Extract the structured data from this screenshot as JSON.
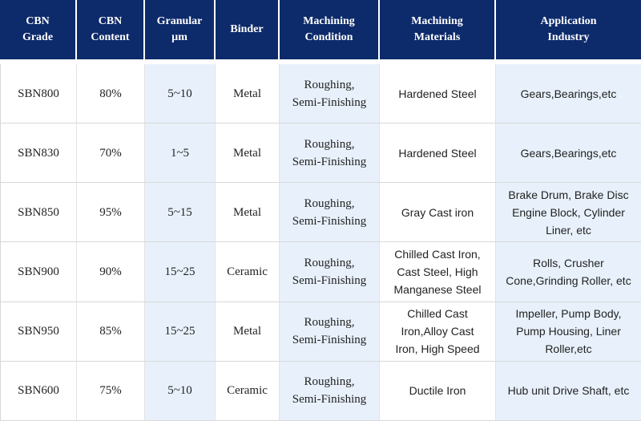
{
  "headers": [
    [
      "CBN",
      "Grade"
    ],
    [
      "CBN",
      "Content"
    ],
    [
      "Granular",
      "µm"
    ],
    [
      "Binder"
    ],
    [
      "Machining",
      "Condition"
    ],
    [
      "Machining",
      "Materials"
    ],
    [
      "Application",
      "Industry"
    ]
  ],
  "rows": [
    {
      "grade": "SBN800",
      "content": "80%",
      "granular": "5~10",
      "binder": "Metal",
      "condition": [
        "Roughing,",
        "Semi-Finishing"
      ],
      "materials": [
        "Hardened Steel"
      ],
      "industry": [
        "Gears,Bearings,etc"
      ]
    },
    {
      "grade": "SBN830",
      "content": "70%",
      "granular": "1~5",
      "binder": "Metal",
      "condition": [
        "Roughing,",
        "Semi-Finishing"
      ],
      "materials": [
        "Hardened Steel"
      ],
      "industry": [
        "Gears,Bearings,etc"
      ]
    },
    {
      "grade": "SBN850",
      "content": "95%",
      "granular": "5~15",
      "binder": "Metal",
      "condition": [
        "Roughing,",
        "Semi-Finishing"
      ],
      "materials": [
        "Gray Cast iron"
      ],
      "industry": [
        "Brake Drum, Brake Disc",
        "Engine Block, Cylinder",
        "Liner, etc"
      ]
    },
    {
      "grade": "SBN900",
      "content": "90%",
      "granular": "15~25",
      "binder": "Ceramic",
      "condition": [
        "Roughing,",
        "Semi-Finishing"
      ],
      "materials": [
        "Chilled Cast Iron,",
        "Cast Steel, High",
        "Manganese Steel"
      ],
      "industry": [
        "Rolls, Crusher",
        "Cone,Grinding Roller, etc"
      ]
    },
    {
      "grade": "SBN950",
      "content": "85%",
      "granular": "15~25",
      "binder": "Metal",
      "condition": [
        "Roughing,",
        "Semi-Finishing"
      ],
      "materials": [
        "Chilled Cast",
        "Iron,Alloy Cast",
        "Iron, High Speed"
      ],
      "industry": [
        "Impeller, Pump Body,",
        "Pump Housing, Liner",
        "Roller,etc"
      ]
    },
    {
      "grade": "SBN600",
      "content": "75%",
      "granular": "5~10",
      "binder": "Ceramic",
      "condition": [
        "Roughing,",
        "Semi-Finishing"
      ],
      "materials": [
        "Ductile Iron"
      ],
      "industry": [
        "Hub unit Drive Shaft, etc"
      ]
    }
  ]
}
